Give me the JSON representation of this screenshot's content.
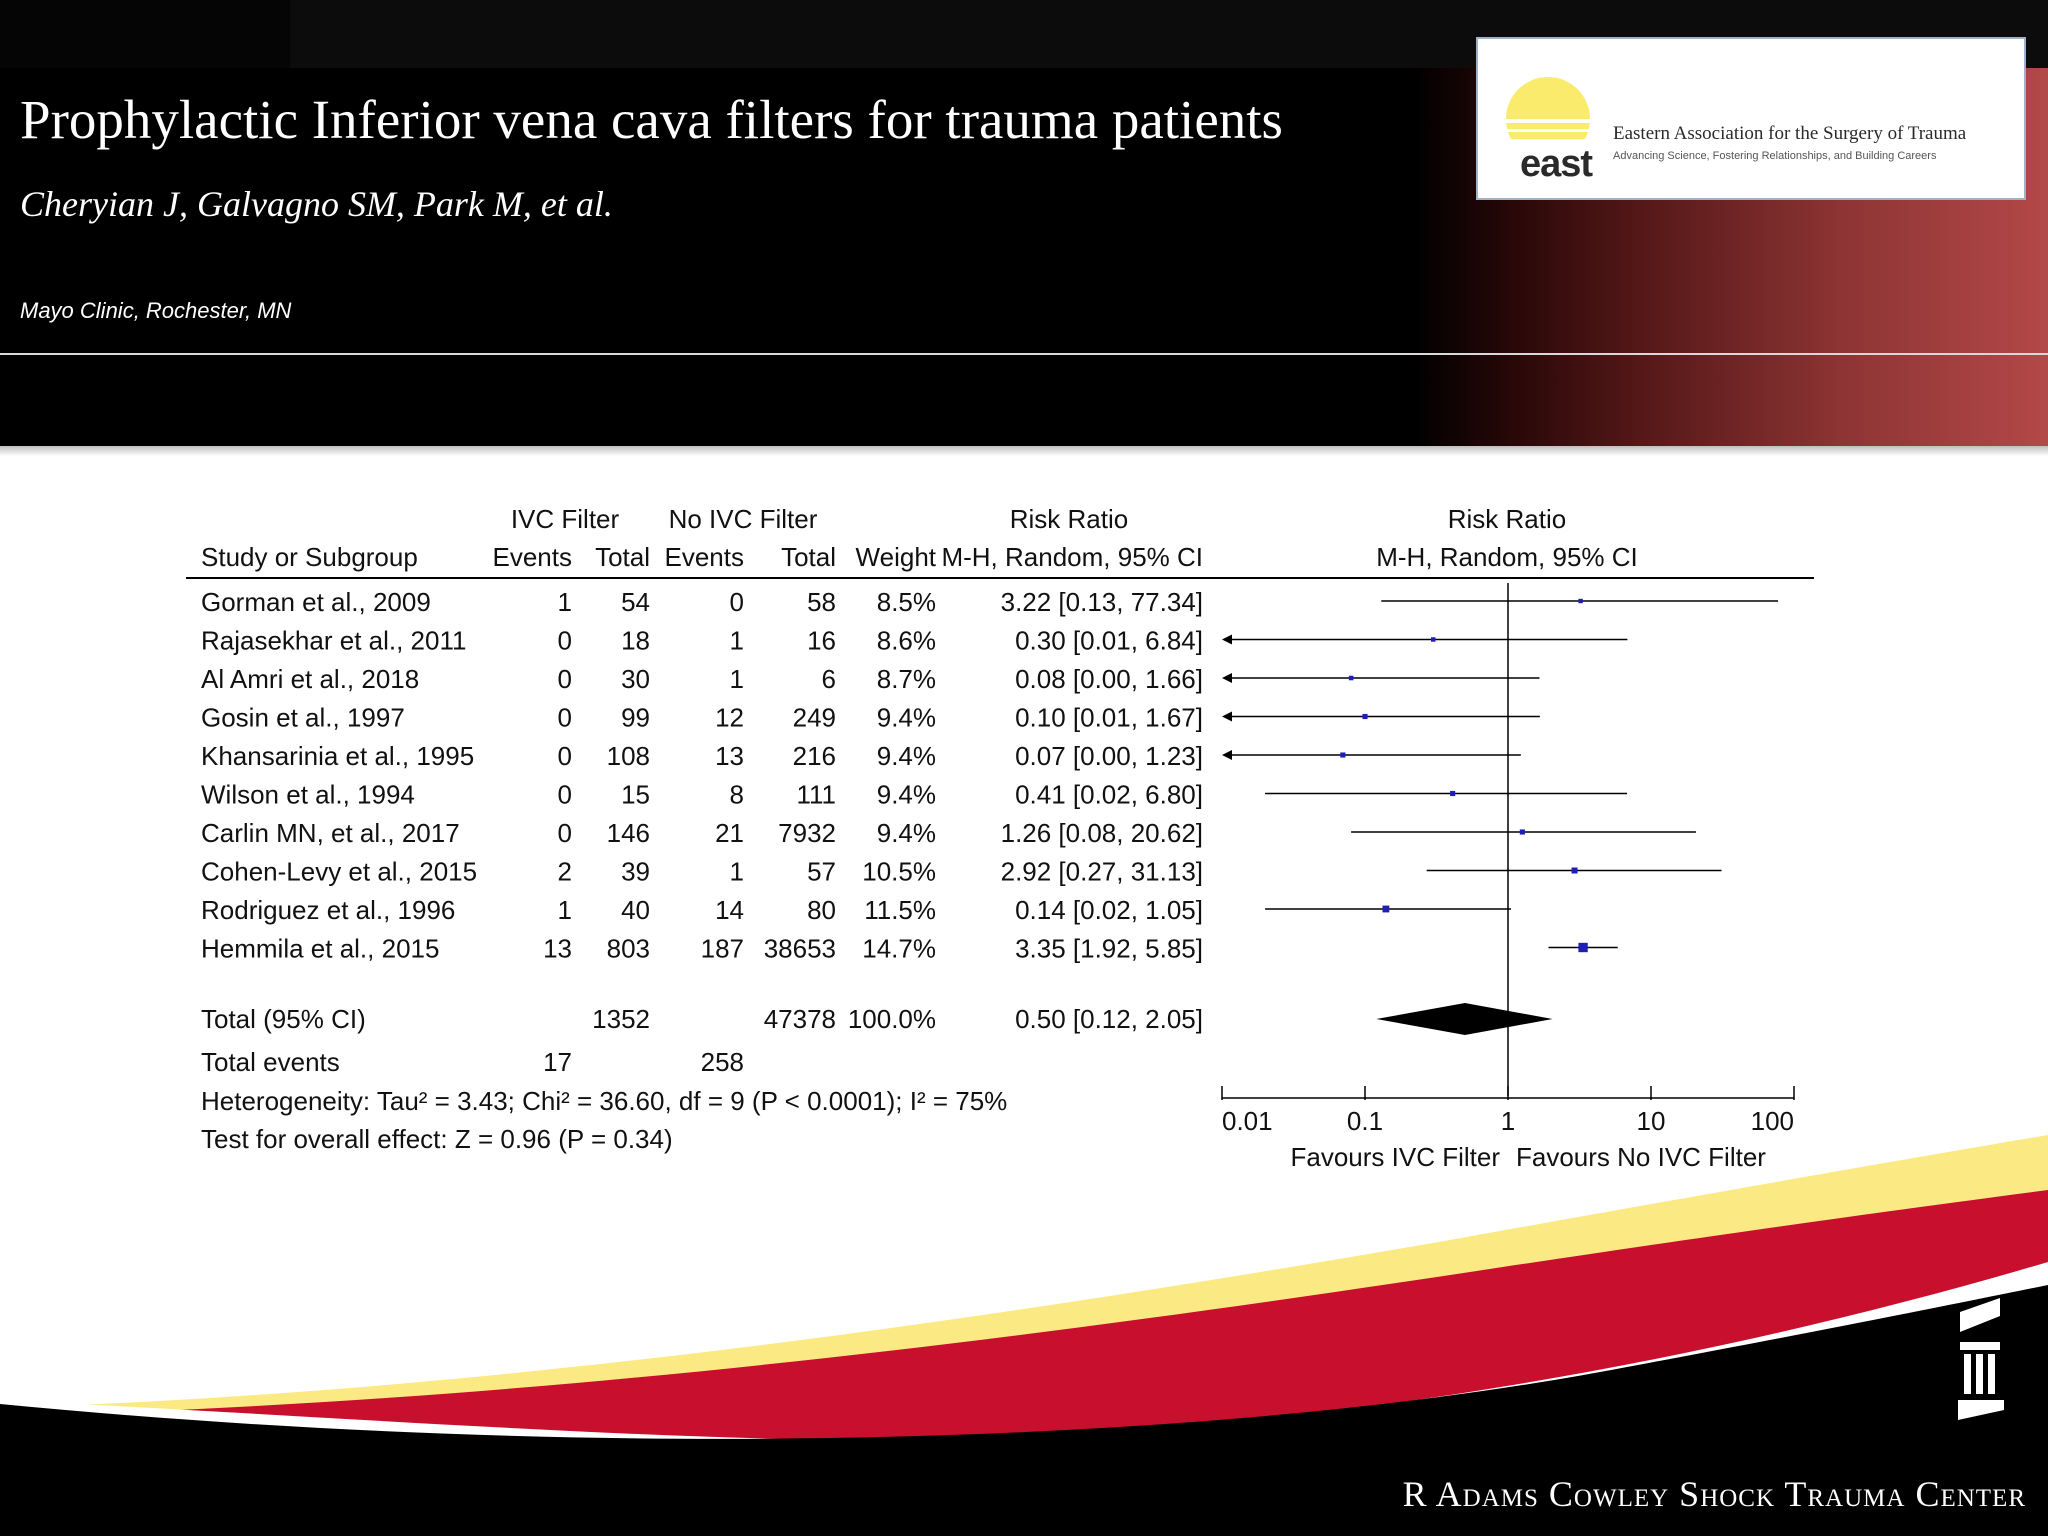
{
  "slide": {
    "title": "Prophylactic Inferior vena cava filters for trauma patients",
    "authors": "Cheryian J, Galvagno SM, Park M, et al.",
    "affiliation": "Mayo Clinic, Rochester, MN"
  },
  "logo": {
    "wordmark": "east",
    "name": "Eastern Association for the Surgery of Trauma",
    "tagline": "Advancing Science, Fostering Relationships, and Building Careers"
  },
  "footer": {
    "brand": "R Adams Cowley Shock Trauma Center"
  },
  "chart_data": {
    "type": "forest",
    "headers": {
      "group_ivc": "IVC Filter",
      "group_noivc": "No IVC Filter",
      "group_rr": "Risk Ratio",
      "study": "Study or Subgroup",
      "events": "Events",
      "total": "Total",
      "weight": "Weight",
      "method": "M-H, Random, 95% CI",
      "plot_group": "Risk Ratio",
      "plot_method": "M-H, Random, 95% CI"
    },
    "studies": [
      {
        "name": "Gorman et al., 2009",
        "ivc_events": "1",
        "ivc_total": "54",
        "no_events": "0",
        "no_total": "58",
        "weight": "8.5%",
        "ci_text": "3.22 [0.13, 77.34]",
        "rr": 3.22,
        "lo": 0.13,
        "hi": 77.34
      },
      {
        "name": "Rajasekhar et al., 2011",
        "ivc_events": "0",
        "ivc_total": "18",
        "no_events": "1",
        "no_total": "16",
        "weight": "8.6%",
        "ci_text": "0.30 [0.01, 6.84]",
        "rr": 0.3,
        "lo": 0.01,
        "hi": 6.84
      },
      {
        "name": "Al Amri et al., 2018",
        "ivc_events": "0",
        "ivc_total": "30",
        "no_events": "1",
        "no_total": "6",
        "weight": "8.7%",
        "ci_text": "0.08 [0.00, 1.66]",
        "rr": 0.08,
        "lo": 0.0,
        "hi": 1.66
      },
      {
        "name": "Gosin et al., 1997",
        "ivc_events": "0",
        "ivc_total": "99",
        "no_events": "12",
        "no_total": "249",
        "weight": "9.4%",
        "ci_text": "0.10 [0.01, 1.67]",
        "rr": 0.1,
        "lo": 0.01,
        "hi": 1.67
      },
      {
        "name": "Khansarinia et al., 1995",
        "ivc_events": "0",
        "ivc_total": "108",
        "no_events": "13",
        "no_total": "216",
        "weight": "9.4%",
        "ci_text": "0.07 [0.00, 1.23]",
        "rr": 0.07,
        "lo": 0.0,
        "hi": 1.23
      },
      {
        "name": "Wilson et al., 1994",
        "ivc_events": "0",
        "ivc_total": "15",
        "no_events": "8",
        "no_total": "111",
        "weight": "9.4%",
        "ci_text": "0.41 [0.02, 6.80]",
        "rr": 0.41,
        "lo": 0.02,
        "hi": 6.8
      },
      {
        "name": "Carlin MN, et al., 2017",
        "ivc_events": "0",
        "ivc_total": "146",
        "no_events": "21",
        "no_total": "7932",
        "weight": "9.4%",
        "ci_text": "1.26 [0.08, 20.62]",
        "rr": 1.26,
        "lo": 0.08,
        "hi": 20.62
      },
      {
        "name": "Cohen-Levy et al., 2015",
        "ivc_events": "2",
        "ivc_total": "39",
        "no_events": "1",
        "no_total": "57",
        "weight": "10.5%",
        "ci_text": "2.92 [0.27, 31.13]",
        "rr": 2.92,
        "lo": 0.27,
        "hi": 31.13
      },
      {
        "name": "Rodriguez et al., 1996",
        "ivc_events": "1",
        "ivc_total": "40",
        "no_events": "14",
        "no_total": "80",
        "weight": "11.5%",
        "ci_text": "0.14 [0.02, 1.05]",
        "rr": 0.14,
        "lo": 0.02,
        "hi": 1.05
      },
      {
        "name": "Hemmila et al., 2015",
        "ivc_events": "13",
        "ivc_total": "803",
        "no_events": "187",
        "no_total": "38653",
        "weight": "14.7%",
        "ci_text": "3.35 [1.92, 5.85]",
        "rr": 3.35,
        "lo": 1.92,
        "hi": 5.85
      }
    ],
    "total": {
      "name": "Total (95% CI)",
      "ivc_total": "1352",
      "no_total": "47378",
      "weight": "100.0%",
      "ci_text": "0.50 [0.12, 2.05]",
      "rr": 0.5,
      "lo": 0.12,
      "hi": 2.05
    },
    "total_events": {
      "name": "Total events",
      "ivc": "17",
      "no": "258"
    },
    "heterogeneity": "Heterogeneity: Tau² = 3.43; Chi² = 36.60, df = 9 (P < 0.0001); I² = 75%",
    "overall_effect": "Test for overall effect: Z = 0.96 (P = 0.34)",
    "axis": {
      "scale": "log",
      "range": [
        0.01,
        100
      ],
      "ticks": [
        0.01,
        0.1,
        1,
        10,
        100
      ],
      "tick_labels": [
        "0.01",
        "0.1",
        "1",
        "10",
        "100"
      ],
      "label_left": "Favours IVC Filter",
      "label_right": "Favours No IVC Filter"
    },
    "colors": {
      "marker": "#1f1fb8",
      "diamond": "#000000"
    }
  }
}
